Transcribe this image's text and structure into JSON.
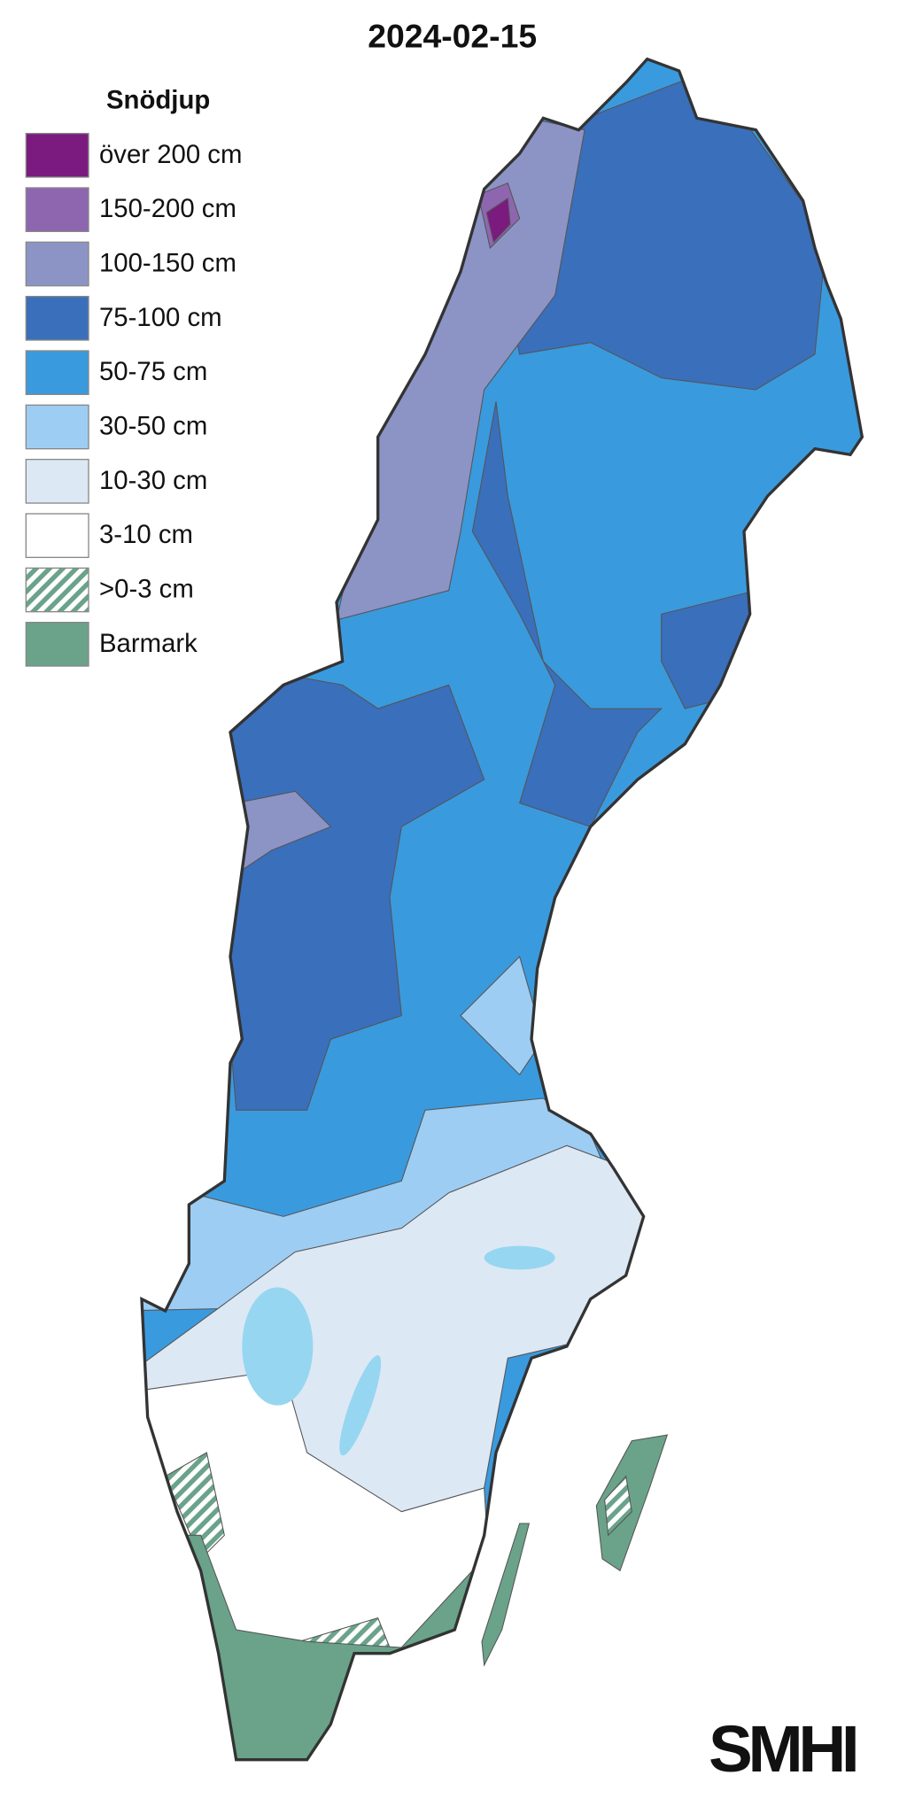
{
  "title": "2024-02-15",
  "legend": {
    "title": "Snödjup",
    "items": [
      {
        "label": "över 200 cm",
        "color": "#7b1a7f"
      },
      {
        "label": "150-200 cm",
        "color": "#8e66b0"
      },
      {
        "label": "100-150 cm",
        "color": "#8c94c6"
      },
      {
        "label": "75-100 cm",
        "color": "#3a6fbb"
      },
      {
        "label": "50-75 cm",
        "color": "#3a9ade"
      },
      {
        "label": "30-50 cm",
        "color": "#9dcdf3"
      },
      {
        "label": "10-30 cm",
        "color": "#dde8f5"
      },
      {
        "label": "3-10 cm",
        "color": "#ffffff"
      },
      {
        "label": ">0-3 cm",
        "color": "#6aa38a",
        "hatched": true
      },
      {
        "label": "Barmark",
        "color": "#6aa38a"
      }
    ]
  },
  "logo": "SMHI"
}
